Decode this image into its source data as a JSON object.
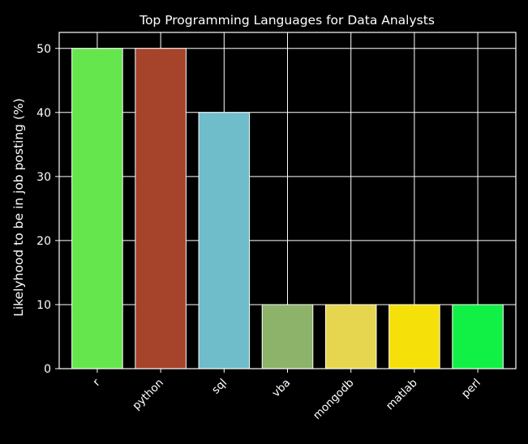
{
  "chart_data": {
    "type": "bar",
    "title": "Top Programming Languages for Data Analysts",
    "xlabel": "",
    "ylabel": "Likelyhood to be in job posting (%)",
    "categories": [
      "r",
      "python",
      "sql",
      "vba",
      "mongodb",
      "matlab",
      "perl"
    ],
    "values": [
      50,
      50,
      40,
      10,
      10,
      10,
      10
    ],
    "colors": [
      "#66e64d",
      "#a5432b",
      "#6fbccb",
      "#8db26a",
      "#e6d64f",
      "#f6e00a",
      "#11f045"
    ],
    "ylim": [
      0,
      52.5
    ],
    "yticks": [
      0,
      10,
      20,
      30,
      40,
      50
    ],
    "grid": true,
    "background": "#000000",
    "foreground": "#ffffff"
  }
}
